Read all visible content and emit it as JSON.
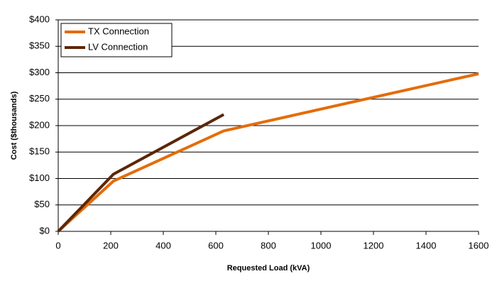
{
  "chart_data": {
    "type": "line",
    "x_label": "Requested Load (kVA)",
    "y_label": "Cost ($thousands)",
    "series": [
      {
        "name": "TX Connection",
        "color": "#e46c0a",
        "x": [
          0,
          210,
          630,
          1600
        ],
        "values": [
          0,
          95,
          190,
          298
        ]
      },
      {
        "name": "LV Connection",
        "color": "#5c2608",
        "x": [
          0,
          210,
          630
        ],
        "values": [
          0,
          108,
          221
        ]
      }
    ],
    "xlim": [
      0,
      1600
    ],
    "xticks": [
      0,
      200,
      400,
      600,
      800,
      1000,
      1200,
      1400,
      1600
    ],
    "ylim": [
      0,
      400
    ],
    "yticks": [
      {
        "value": 0,
        "label": "$0"
      },
      {
        "value": 50,
        "label": "$50"
      },
      {
        "value": 100,
        "label": "$100"
      },
      {
        "value": 150,
        "label": "$150"
      },
      {
        "value": 200,
        "label": "$200"
      },
      {
        "value": 250,
        "label": "$250"
      },
      {
        "value": 300,
        "label": "$300"
      },
      {
        "value": 350,
        "label": "$350"
      },
      {
        "value": 400,
        "label": "$400"
      }
    ],
    "grid": true,
    "legend": "top-left"
  }
}
